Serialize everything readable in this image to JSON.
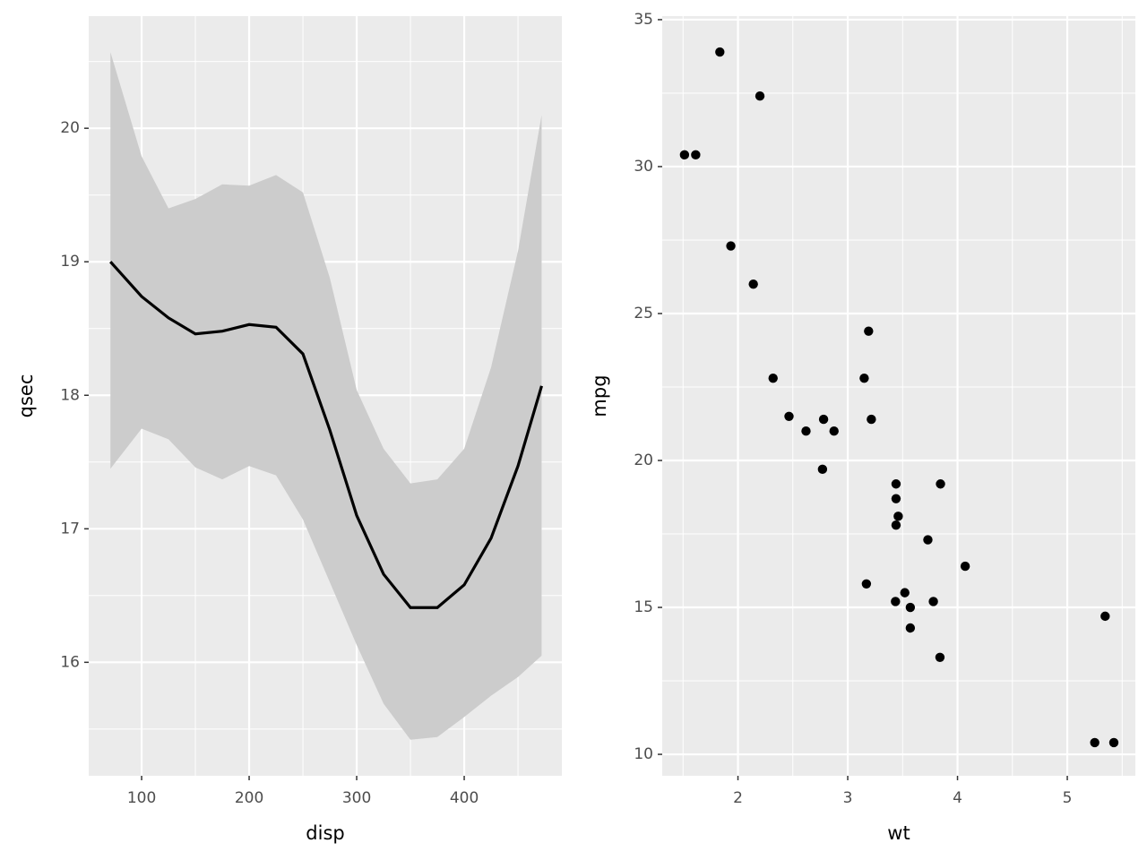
{
  "chart_data": [
    {
      "type": "line",
      "x_label": "disp",
      "y_label": "qsec",
      "x": [
        71,
        100,
        125,
        150,
        175,
        200,
        225,
        250,
        275,
        300,
        325,
        350,
        375,
        400,
        425,
        450,
        472
      ],
      "series": [
        {
          "color": "#000000",
          "band_color": "#cccccc",
          "values": [
            19.0,
            18.74,
            18.58,
            18.46,
            18.48,
            18.53,
            18.51,
            18.31,
            17.74,
            17.1,
            16.66,
            16.41,
            16.41,
            16.58,
            16.93,
            17.47,
            18.07
          ],
          "ci_upper": [
            20.57,
            19.79,
            19.4,
            19.47,
            19.58,
            19.57,
            19.65,
            19.52,
            18.88,
            18.04,
            17.6,
            17.34,
            17.37,
            17.6,
            18.21,
            19.08,
            20.1
          ],
          "ci_lower": [
            17.45,
            17.75,
            17.67,
            17.46,
            17.37,
            17.47,
            17.4,
            17.07,
            16.6,
            16.13,
            15.69,
            15.42,
            15.44,
            15.59,
            15.75,
            15.89,
            16.05
          ]
        }
      ],
      "xlim": [
        50.8,
        490.8
      ],
      "xticks": [
        100,
        200,
        300,
        400
      ],
      "x_minor_ticks": [
        150,
        250,
        350,
        450
      ],
      "ylim": [
        15.15,
        20.84
      ],
      "yticks": [
        16,
        17,
        18,
        19,
        20
      ],
      "y_minor_ticks": [
        15.5,
        16.5,
        17.5,
        18.5,
        19.5,
        20.5
      ],
      "grid": true
    },
    {
      "type": "scatter",
      "x_label": "wt",
      "y_label": "mpg",
      "color": "#000000",
      "x": [
        2.62,
        2.875,
        2.32,
        3.215,
        3.44,
        3.46,
        3.57,
        3.19,
        3.15,
        3.44,
        3.44,
        4.07,
        3.73,
        3.78,
        5.25,
        5.424,
        5.345,
        2.2,
        1.615,
        1.835,
        2.465,
        3.52,
        3.435,
        3.84,
        3.845,
        1.935,
        2.14,
        1.513,
        3.17,
        2.77,
        3.57,
        2.78
      ],
      "values": [
        21.0,
        21.0,
        22.8,
        21.4,
        18.7,
        18.1,
        14.3,
        24.4,
        22.8,
        19.2,
        17.8,
        16.4,
        17.3,
        15.2,
        10.4,
        10.4,
        14.7,
        32.4,
        30.4,
        33.9,
        21.5,
        15.5,
        15.2,
        13.3,
        19.2,
        27.3,
        26.0,
        30.4,
        15.8,
        19.7,
        15.0,
        21.4
      ],
      "xlim": [
        1.31,
        5.62
      ],
      "xticks": [
        2,
        3,
        4,
        5
      ],
      "x_minor_ticks": [
        1.5,
        2.5,
        3.5,
        4.5,
        5.5
      ],
      "ylim": [
        9.27,
        35.12
      ],
      "yticks": [
        10,
        15,
        20,
        25,
        30,
        35
      ],
      "y_minor_ticks": [
        12.5,
        17.5,
        22.5,
        27.5,
        32.5
      ],
      "grid": true
    }
  ]
}
